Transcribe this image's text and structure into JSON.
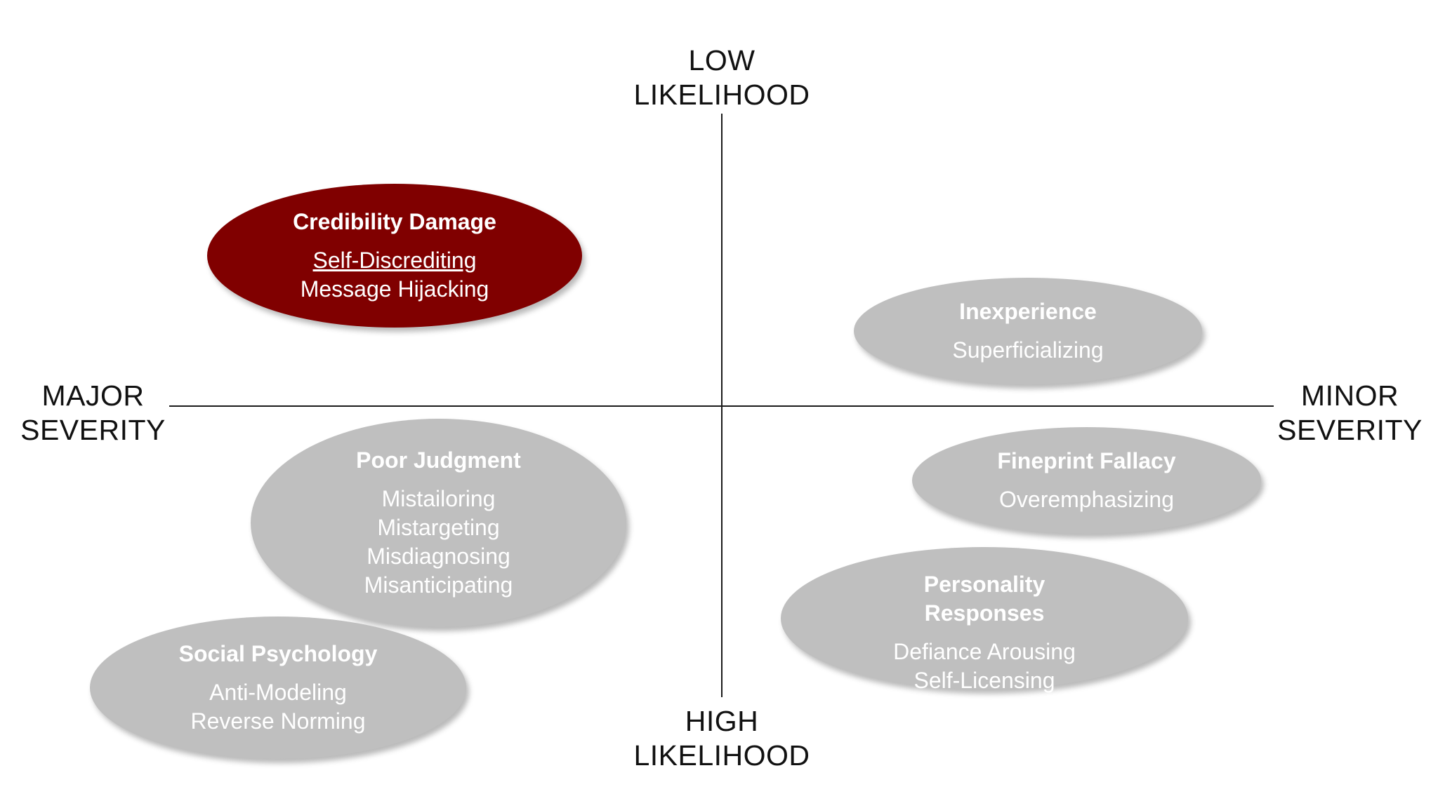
{
  "axes": {
    "top": [
      "LOW",
      "LIKELIHOOD"
    ],
    "bottom": [
      "HIGH",
      "LIKELIHOOD"
    ],
    "left": [
      "MAJOR",
      "SEVERITY"
    ],
    "right": [
      "MINOR",
      "SEVERITY"
    ]
  },
  "colors": {
    "highlight": "#800000",
    "neutral": "#bfbfbf",
    "axis": "#1a1a1a"
  },
  "bubbles": {
    "credibility": {
      "title": [
        "Credibility Damage"
      ],
      "items": [
        "Self-Discrediting",
        "Message Hijacking"
      ]
    },
    "inexperience": {
      "title": [
        "Inexperience"
      ],
      "items": [
        "Superficializing"
      ]
    },
    "poor_judgment": {
      "title": [
        "Poor Judgment"
      ],
      "items": [
        "Mistailoring",
        "Mistargeting",
        "Misdiagnosing",
        "Misanticipating"
      ]
    },
    "fineprint": {
      "title": [
        "Fineprint Fallacy"
      ],
      "items": [
        "Overemphasizing"
      ]
    },
    "personality": {
      "title": [
        "Personality",
        "Responses"
      ],
      "items": [
        "Defiance Arousing",
        "Self-Licensing"
      ]
    },
    "social": {
      "title": [
        "Social Psychology"
      ],
      "items": [
        "Anti-Modeling",
        "Reverse Norming"
      ]
    }
  }
}
